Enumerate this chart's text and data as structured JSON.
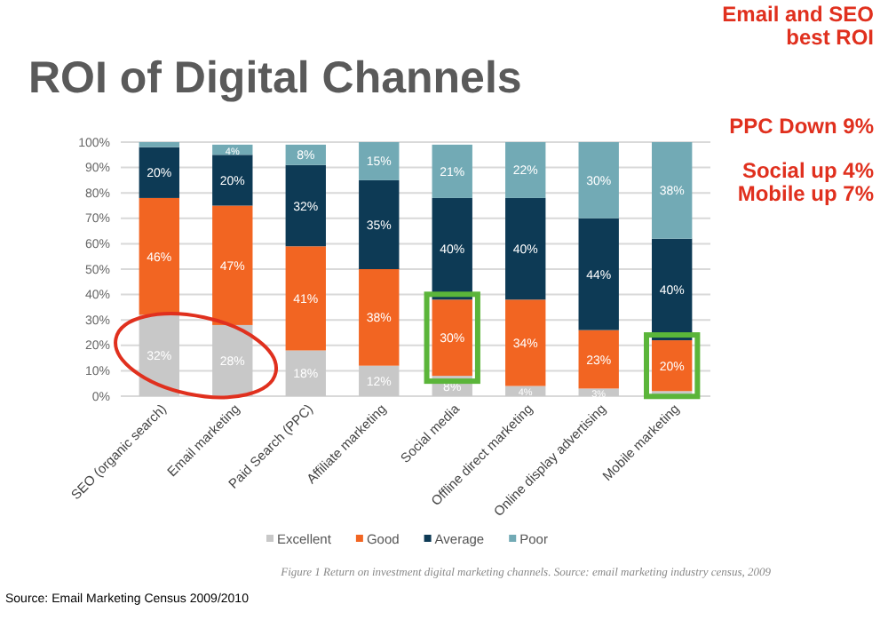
{
  "chart_data": {
    "type": "bar",
    "stacked": true,
    "title": "ROI of Digital Channels",
    "categories": [
      "SEO (organic search)",
      "Email marketing",
      "Paid Search (PPC)",
      "Affiliate marketing",
      "Social media",
      "Offline direct marketing",
      "Online display advertising",
      "Mobile marketing"
    ],
    "series": [
      {
        "name": "Excellent",
        "color": "#c8c8c8",
        "values": [
          32,
          28,
          18,
          12,
          8,
          4,
          3,
          2
        ],
        "value_labels": [
          "32%",
          "28%",
          "18%",
          "12%",
          "8%",
          "4%",
          "3%",
          null
        ]
      },
      {
        "name": "Good",
        "color": "#f26522",
        "values": [
          46,
          47,
          41,
          38,
          30,
          34,
          23,
          20
        ],
        "value_labels": [
          "46%",
          "47%",
          "41%",
          "38%",
          "30%",
          "34%",
          "23%",
          "20%"
        ]
      },
      {
        "name": "Average",
        "color": "#0d3a55",
        "values": [
          20,
          20,
          32,
          35,
          40,
          40,
          44,
          40
        ],
        "value_labels": [
          "20%",
          "20%",
          "32%",
          "35%",
          "40%",
          "40%",
          "44%",
          "40%"
        ]
      },
      {
        "name": "Poor",
        "color": "#72aab5",
        "values": [
          2,
          4,
          8,
          15,
          21,
          22,
          30,
          38
        ],
        "value_labels": [
          null,
          "4%",
          "8%",
          "15%",
          "21%",
          "22%",
          "30%",
          "38%"
        ]
      }
    ],
    "ylim": [
      0,
      100
    ],
    "yticks": [
      {
        "value": 0,
        "label": "0%"
      },
      {
        "value": 10,
        "label": "10%"
      },
      {
        "value": 20,
        "label": "20%"
      },
      {
        "value": 30,
        "label": "30%"
      },
      {
        "value": 40,
        "label": "40%"
      },
      {
        "value": 50,
        "label": "50%"
      },
      {
        "value": 60,
        "label": "60%"
      },
      {
        "value": 70,
        "label": "70%"
      },
      {
        "value": 80,
        "label": "80%"
      },
      {
        "value": 90,
        "label": "90%"
      },
      {
        "value": 100,
        "label": "100%"
      }
    ],
    "grid": "y",
    "legend": "bottom",
    "annotations": [
      "Email and SEO\nbest ROI",
      "PPC Down 9%",
      "Social up 4%\nMobile up 7%",
      "Figure 1 Return on investment digital marketing channels. Source: email marketing industry census, 2009",
      "Source: Email Marketing Census 2009/2010"
    ]
  }
}
